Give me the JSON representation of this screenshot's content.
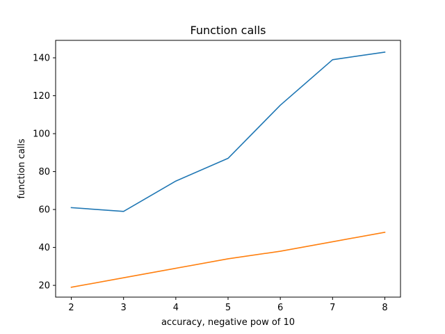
{
  "chart_data": {
    "type": "line",
    "title": "Function calls",
    "xlabel": "accuracy, negative pow of 10",
    "ylabel": "function calls",
    "x": [
      2,
      3,
      4,
      5,
      6,
      7,
      8
    ],
    "xlim": [
      1.7,
      8.3
    ],
    "ylim": [
      13.8,
      149.2
    ],
    "xticks": [
      2,
      3,
      4,
      5,
      6,
      7,
      8
    ],
    "yticks": [
      20,
      40,
      60,
      80,
      100,
      120,
      140
    ],
    "grid": false,
    "legend": "none",
    "series": [
      {
        "color": "#1f77b4",
        "values": [
          61,
          59,
          75,
          87,
          115,
          139,
          143
        ]
      },
      {
        "color": "#ff7f0e",
        "values": [
          19,
          24,
          29,
          34,
          38,
          43,
          48
        ]
      }
    ]
  }
}
